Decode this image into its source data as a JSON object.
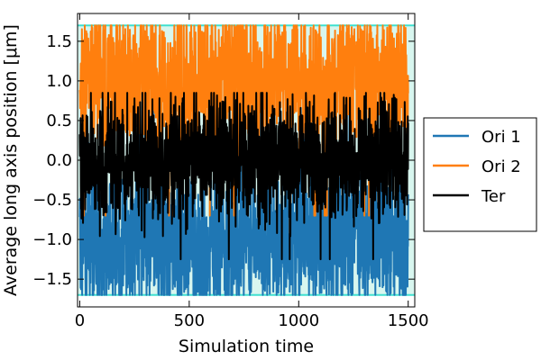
{
  "chart_data": {
    "type": "line",
    "xlabel": "Simulation time",
    "ylabel": "Average long axis position [μm]",
    "xlim": [
      -10,
      1530
    ],
    "ylim": [
      -1.85,
      1.85
    ],
    "x_ticks": [
      {
        "value": 0,
        "label": "0"
      },
      {
        "value": 500,
        "label": "500"
      },
      {
        "value": 1000,
        "label": "1000"
      },
      {
        "value": 1500,
        "label": "1500"
      }
    ],
    "y_ticks": [
      {
        "value": 1.5,
        "label": "1.5"
      },
      {
        "value": 1.0,
        "label": "1.0"
      },
      {
        "value": 0.5,
        "label": "0.5"
      },
      {
        "value": 0.0,
        "label": "0.0"
      },
      {
        "value": -0.5,
        "label": "−0.5"
      },
      {
        "value": -1.0,
        "label": "−1.0"
      },
      {
        "value": -1.5,
        "label": "−1.5"
      }
    ],
    "band": {
      "y_min": -1.7,
      "y_max": 1.7,
      "fill": "#d8f6ef",
      "edge_color": "#40e0d0"
    },
    "x_range": [
      0,
      1500
    ],
    "legend_position": "right, outside plot",
    "series": [
      {
        "name": "Ori 1",
        "color": "#1f77b4",
        "mean": -1.0,
        "min": -1.7,
        "max": 0.7,
        "amplitude": 0.45
      },
      {
        "name": "Ori 2",
        "color": "#ff7f0e",
        "mean": 1.0,
        "min": -0.7,
        "max": 1.7,
        "amplitude": 0.45
      },
      {
        "name": "Ter",
        "color": "#000000",
        "mean": 0.0,
        "min": -1.25,
        "max": 0.85,
        "amplitude": 0.38
      }
    ]
  }
}
